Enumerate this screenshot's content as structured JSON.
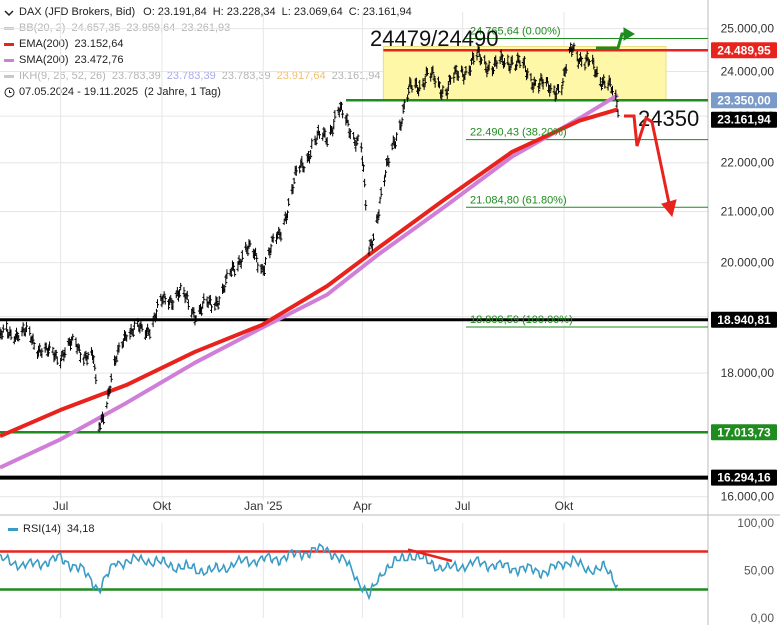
{
  "header": {
    "title": "DAX (JFD Brokers, Bid)",
    "ohlc": [
      {
        "label": "O:",
        "value": "23.191,84"
      },
      {
        "label": "H:",
        "value": "23.228,34"
      },
      {
        "label": "L:",
        "value": "23.069,64"
      },
      {
        "label": "C:",
        "value": "23.161,94"
      }
    ],
    "date_range": "07.05.2024 - 19.11.2025",
    "period": "(2 Jahre, 1 Tag)"
  },
  "indicators": [
    {
      "label": "BB(20, 2)",
      "values": [
        "24.657,35",
        "23.959,64",
        "23.261,93"
      ],
      "color": "#c9c9c9",
      "faded": true
    },
    {
      "label": "EMA(200)",
      "values": [
        "23.152,64"
      ],
      "color": "#e8231e",
      "faded": false
    },
    {
      "label": "SMA(200)",
      "values": [
        "23.472,76"
      ],
      "color": "#d07fd8",
      "faded": false
    },
    {
      "label": "IKH(9, 26, 52, 26)",
      "values": [
        "23.783,39",
        "23.783,39",
        "23.783,39",
        "23.917,64",
        "23.161,94"
      ],
      "color": "#c9c9c9",
      "faded": true
    }
  ],
  "colors": {
    "price": "#000000",
    "ema": "#e8231e",
    "sma": "#d07fd8",
    "support_green": "#1e8c1e",
    "rsi_line": "#3a9cc4",
    "rsi_upper": "#e8231e",
    "rsi_lower": "#1e8c1e",
    "range_box": "#fff7a8",
    "grid": "#e6e6e6"
  },
  "annotations": {
    "range_label": "24479/24490",
    "target_label": "24350",
    "fib_labels": [
      "24.765,64 (0.00%)",
      "22.490,43 (38.20%)",
      "21.084,80 (61.80%)",
      "18.809,59 (100.00%)"
    ]
  },
  "price_axis_badges": [
    {
      "text": "24.489,95",
      "bg": "#e8231e",
      "fg": "#ffffff"
    },
    {
      "text": "23.350,00",
      "bg": "#7a9ac9",
      "fg": "#ffffff"
    },
    {
      "text": "23.161,94",
      "bg": "#000000",
      "fg": "#ffffff"
    },
    {
      "text": "18.940,81",
      "bg": "#000000",
      "fg": "#ffffff"
    },
    {
      "text": "17.013,73",
      "bg": "#1e8c1e",
      "fg": "#ffffff"
    },
    {
      "text": "16.294,16",
      "bg": "#000000",
      "fg": "#ffffff"
    }
  ],
  "rsi_panel": {
    "label": "RSI(14)",
    "value": "34,18",
    "y_ticks": [
      "100,00",
      "50,00",
      "0,00"
    ]
  },
  "chart_data": [
    {
      "type": "line",
      "subtype": "ohlc",
      "title": "DAX (JFD Brokers, Bid)",
      "xlabel": "",
      "ylabel": "",
      "x_tick_labels": [
        "Jul",
        "Okt",
        "Jan '25",
        "Apr",
        "Jul",
        "Okt"
      ],
      "y_tick_labels": [
        "25.000,00",
        "24.000,00",
        "23.000,00",
        "22.000,00",
        "21.000,00",
        "20.000,00",
        "19.000,00",
        "18.000,00",
        "17.000,00",
        "16.000,00"
      ],
      "y_scale": "log",
      "ylim": [
        15950,
        25400
      ],
      "grid": true,
      "series": [
        {
          "name": "DAX (JFD Brokers, Bid)",
          "x": [
            "2024-05-07",
            "2024-05-20",
            "2024-06-05",
            "2024-06-20",
            "2024-07-01",
            "2024-07-15",
            "2024-07-31",
            "2024-08-05",
            "2024-08-15",
            "2024-08-30",
            "2024-09-15",
            "2024-09-30",
            "2024-10-15",
            "2024-10-31",
            "2024-11-15",
            "2024-11-29",
            "2024-12-15",
            "2024-12-31",
            "2025-01-15",
            "2025-01-31",
            "2025-02-15",
            "2025-02-28",
            "2025-03-10",
            "2025-03-20",
            "2025-03-31",
            "2025-04-07",
            "2025-04-15",
            "2025-04-30",
            "2025-05-15",
            "2025-05-30",
            "2025-06-15",
            "2025-06-30",
            "2025-07-15",
            "2025-07-31",
            "2025-08-15",
            "2025-08-31",
            "2025-09-15",
            "2025-09-30",
            "2025-10-09",
            "2025-10-20",
            "2025-10-31",
            "2025-11-10",
            "2025-11-19"
          ],
          "values": [
            18600,
            18750,
            18600,
            18300,
            18350,
            18500,
            18200,
            17100,
            17800,
            18800,
            18700,
            19200,
            19450,
            19100,
            19200,
            19600,
            20300,
            19950,
            20500,
            21700,
            22400,
            22600,
            23100,
            22800,
            22300,
            20200,
            21000,
            22500,
            23600,
            23900,
            23600,
            24000,
            24300,
            24100,
            24300,
            23900,
            23600,
            23700,
            24600,
            24200,
            24000,
            23700,
            23160
          ]
        },
        {
          "name": "EMA(200)",
          "x": [
            "2024-05-07",
            "2024-07-01",
            "2024-08-30",
            "2024-10-31",
            "2024-12-31",
            "2025-02-28",
            "2025-04-15",
            "2025-06-15",
            "2025-08-15",
            "2025-10-15",
            "2025-11-19"
          ],
          "values": [
            16950,
            17380,
            17800,
            18370,
            18850,
            19560,
            20280,
            21250,
            22230,
            22900,
            23150
          ]
        },
        {
          "name": "SMA(200)",
          "x": [
            "2024-05-07",
            "2024-07-01",
            "2024-08-30",
            "2024-10-31",
            "2024-12-31",
            "2025-02-28",
            "2025-04-15",
            "2025-06-15",
            "2025-08-15",
            "2025-10-15",
            "2025-11-19"
          ],
          "values": [
            16450,
            16900,
            17500,
            18180,
            18800,
            19400,
            20150,
            21100,
            22130,
            22950,
            23470
          ]
        }
      ],
      "horizontal_levels": [
        {
          "value": 24765.64,
          "label": "24.765,64 (0.00%)"
        },
        {
          "value": 24489.95,
          "label": "24.489,95"
        },
        {
          "value": 23350.0,
          "label": "23.350,00"
        },
        {
          "value": 22490.43,
          "label": "22.490,43 (38.20%)"
        },
        {
          "value": 21084.8,
          "label": "21.084,80 (61.80%)"
        },
        {
          "value": 18940.81,
          "label": "18.940,81"
        },
        {
          "value": 18809.59,
          "label": "18.809,59 (100.00%)"
        },
        {
          "value": 17013.73,
          "label": "17.013,73"
        },
        {
          "value": 16294.16,
          "label": "16.294,16"
        }
      ],
      "legend_position": "top-left"
    },
    {
      "type": "line",
      "title": "RSI(14)",
      "xlabel": "",
      "ylabel": "",
      "ylim": [
        0,
        100
      ],
      "y_tick_labels": [
        "100,00",
        "50,00",
        "0,00"
      ],
      "reference_lines": [
        70,
        30
      ],
      "series": [
        {
          "name": "RSI(14)",
          "x": [
            "2024-05-07",
            "2024-06-01",
            "2024-07-01",
            "2024-07-20",
            "2024-08-05",
            "2024-08-20",
            "2024-09-15",
            "2024-10-15",
            "2024-11-15",
            "2024-12-15",
            "2025-01-15",
            "2025-02-15",
            "2025-02-28",
            "2025-03-20",
            "2025-04-07",
            "2025-04-20",
            "2025-05-15",
            "2025-06-15",
            "2025-07-15",
            "2025-08-15",
            "2025-09-15",
            "2025-10-09",
            "2025-10-20",
            "2025-11-05",
            "2025-11-19"
          ],
          "values": [
            62,
            55,
            62,
            50,
            30,
            58,
            62,
            55,
            50,
            60,
            62,
            70,
            72,
            55,
            22,
            52,
            68,
            52,
            58,
            52,
            48,
            62,
            50,
            55,
            34.18
          ]
        }
      ]
    }
  ]
}
